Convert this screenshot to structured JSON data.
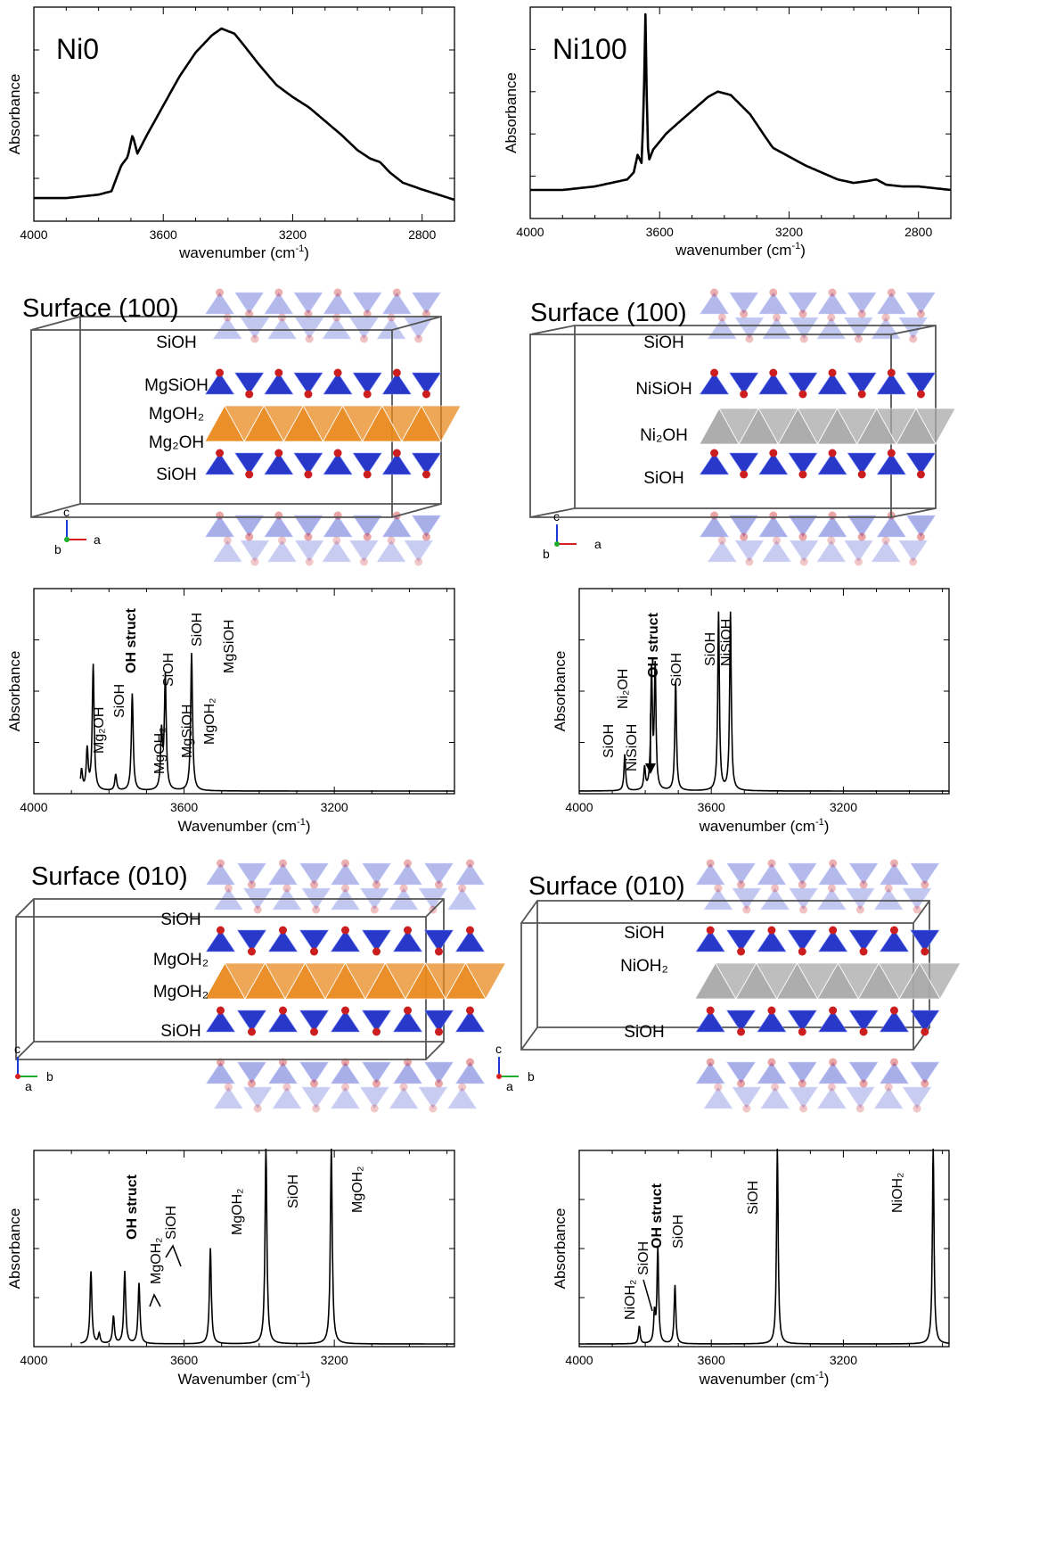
{
  "exp_panels": [
    {
      "title": "Ni0",
      "ylabel": "Absorbance",
      "xlabel": "wavenumber (cm",
      "xlabel_sup": "-1",
      "xlabel_end": ")",
      "ticks": [
        "4000",
        "3600",
        "3200",
        "2800"
      ]
    },
    {
      "title": "Ni100",
      "ylabel": "Absorbance",
      "xlabel": "wavenumber (cm",
      "xlabel_sup": "-1",
      "xlabel_end": ")",
      "ticks": [
        "4000",
        "3600",
        "3200",
        "2800"
      ]
    }
  ],
  "sim_panels": [
    {
      "ylabel": "Absorbance",
      "xlabel": "Wavenumber (cm",
      "xlabel_sup": "-1",
      "xlabel_end": ")",
      "ticks": [
        "4000",
        "3600",
        "3200"
      ]
    },
    {
      "ylabel": "Absorbance",
      "xlabel": "wavenumber (cm",
      "xlabel_sup": "-1",
      "xlabel_end": ")",
      "ticks": [
        "4000",
        "3600",
        "3200"
      ]
    },
    {
      "ylabel": "Absorbance",
      "xlabel": "Wavenumber (cm",
      "xlabel_sup": "-1",
      "xlabel_end": ")",
      "ticks": [
        "4000",
        "3600",
        "3200"
      ]
    },
    {
      "ylabel": "Absorbance",
      "xlabel": "wavenumber (cm",
      "xlabel_sup": "-1",
      "xlabel_end": ")",
      "ticks": [
        "4000",
        "3600",
        "3200"
      ]
    }
  ],
  "structures": [
    {
      "title": "Surface (100)",
      "labels": [
        "SiOH",
        "MgSiOH",
        "MgOH₂",
        "Mg₂OH",
        "SiOH"
      ],
      "axes": [
        "c",
        "b",
        "a"
      ],
      "octa_color": "#e98a1e"
    },
    {
      "title": "Surface (100)",
      "labels": [
        "SiOH",
        "NiSiOH",
        "Ni₂OH",
        "SiOH"
      ],
      "axes": [
        "c",
        "b",
        "a"
      ],
      "octa_color": "#a9a9a9"
    },
    {
      "title": "Surface (010)",
      "labels": [
        "SiOH",
        "MgOH₂",
        "MgOH₂",
        "SiOH"
      ],
      "axes": [
        "c",
        "b",
        "a"
      ],
      "octa_color": "#e98a1e"
    },
    {
      "title": "Surface (010)",
      "labels": [
        "SiOH",
        "NiOH₂",
        "SiOH"
      ],
      "axes": [
        "c",
        "b",
        "a"
      ],
      "octa_color": "#a9a9a9"
    }
  ],
  "colors": {
    "tetra": "#2838c8",
    "oxygen": "#cc1e1e",
    "cell": "#555555"
  },
  "chart_data": [
    {
      "type": "line",
      "title": "Ni0",
      "xlabel": "wavenumber (cm-1)",
      "ylabel": "Absorbance",
      "xlim": [
        4000,
        2700
      ],
      "x": [
        4000,
        3900,
        3800,
        3760,
        3730,
        3710,
        3695,
        3680,
        3650,
        3600,
        3550,
        3500,
        3450,
        3420,
        3380,
        3350,
        3300,
        3250,
        3200,
        3150,
        3100,
        3050,
        3000,
        2960,
        2930,
        2900,
        2860,
        2800,
        2750,
        2700
      ],
      "y": [
        0.01,
        0.01,
        0.03,
        0.05,
        0.2,
        0.25,
        0.38,
        0.27,
        0.38,
        0.55,
        0.72,
        0.86,
        0.96,
        1.0,
        0.97,
        0.9,
        0.78,
        0.67,
        0.6,
        0.54,
        0.46,
        0.38,
        0.29,
        0.24,
        0.22,
        0.16,
        0.1,
        0.06,
        0.03,
        0.0
      ]
    },
    {
      "type": "line",
      "title": "Ni100",
      "xlabel": "wavenumber (cm-1)",
      "ylabel": "Absorbance",
      "xlim": [
        4000,
        2700
      ],
      "x": [
        4000,
        3900,
        3800,
        3700,
        3680,
        3668,
        3655,
        3648,
        3644,
        3640,
        3635,
        3620,
        3580,
        3550,
        3500,
        3450,
        3420,
        3380,
        3320,
        3280,
        3250,
        3200,
        3150,
        3100,
        3050,
        3000,
        2960,
        2930,
        2900,
        2850,
        2800,
        2750,
        2700
      ],
      "y": [
        0.0,
        0.0,
        0.02,
        0.06,
        0.1,
        0.2,
        0.15,
        0.6,
        1.0,
        0.55,
        0.16,
        0.23,
        0.32,
        0.37,
        0.45,
        0.53,
        0.56,
        0.54,
        0.43,
        0.32,
        0.24,
        0.19,
        0.14,
        0.1,
        0.06,
        0.04,
        0.05,
        0.06,
        0.03,
        0.02,
        0.02,
        0.01,
        0.0
      ]
    },
    {
      "type": "line",
      "title": "",
      "xlabel": "Wavenumber (cm-1)",
      "ylabel": "Absorbance",
      "xlim": [
        4000,
        2880
      ],
      "peaks": [
        {
          "x": 3873,
          "h": 0.1
        },
        {
          "x": 3858,
          "h": 0.2
        },
        {
          "x": 3842,
          "h": 0.62
        },
        {
          "x": 3782,
          "h": 0.08
        },
        {
          "x": 3738,
          "h": 0.48
        },
        {
          "x": 3660,
          "h": 0.28
        },
        {
          "x": 3650,
          "h": 0.56
        },
        {
          "x": 3580,
          "h": 0.68
        }
      ],
      "peak_labels": [
        "Mg₂OH",
        "SiOH",
        "OH struct",
        "MgOH₂",
        "SiOH",
        "MgSiOH",
        "SiOH",
        "MgOH₂",
        "MgSiOH"
      ]
    },
    {
      "type": "line",
      "title": "",
      "xlabel": "wavenumber (cm-1)",
      "ylabel": "Absorbance",
      "xlim": [
        4000,
        2880
      ],
      "peaks": [
        {
          "x": 3862,
          "h": 0.18
        },
        {
          "x": 3802,
          "h": 0.11
        },
        {
          "x": 3781,
          "h": 0.58
        },
        {
          "x": 3770,
          "h": 0.6
        },
        {
          "x": 3708,
          "h": 0.54
        },
        {
          "x": 3578,
          "h": 0.88
        },
        {
          "x": 3542,
          "h": 0.88
        }
      ],
      "peak_labels": [
        "SiOH",
        "NiSiOH",
        "Ni₂OH",
        "OH struct",
        "SiOH",
        "SiOH",
        "NiSiOH"
      ]
    },
    {
      "type": "line",
      "title": "",
      "xlabel": "Wavenumber (cm-1)",
      "ylabel": "Absorbance",
      "xlim": [
        4000,
        2880
      ],
      "peaks": [
        {
          "x": 3848,
          "h": 0.37
        },
        {
          "x": 3826,
          "h": 0.05
        },
        {
          "x": 3788,
          "h": 0.14
        },
        {
          "x": 3758,
          "h": 0.37
        },
        {
          "x": 3720,
          "h": 0.31
        },
        {
          "x": 3530,
          "h": 0.49
        },
        {
          "x": 3382,
          "h": 1.0
        },
        {
          "x": 3208,
          "h": 1.0
        }
      ],
      "peak_labels": [
        "OH struct",
        "MgOH₂",
        "SiOH",
        "MgOH₂",
        "SiOH",
        "MgOH₂"
      ]
    },
    {
      "type": "line",
      "title": "",
      "xlabel": "wavenumber (cm-1)",
      "ylabel": "Absorbance",
      "xlim": [
        4000,
        2880
      ],
      "peaks": [
        {
          "x": 3818,
          "h": 0.09
        },
        {
          "x": 3772,
          "h": 0.15
        },
        {
          "x": 3762,
          "h": 0.48
        },
        {
          "x": 3710,
          "h": 0.3
        },
        {
          "x": 3400,
          "h": 1.0
        },
        {
          "x": 2928,
          "h": 1.0
        }
      ],
      "peak_labels": [
        "NiOH₂",
        "SiOH",
        "OH struct",
        "SiOH",
        "SiOH",
        "NiOH₂"
      ]
    }
  ]
}
